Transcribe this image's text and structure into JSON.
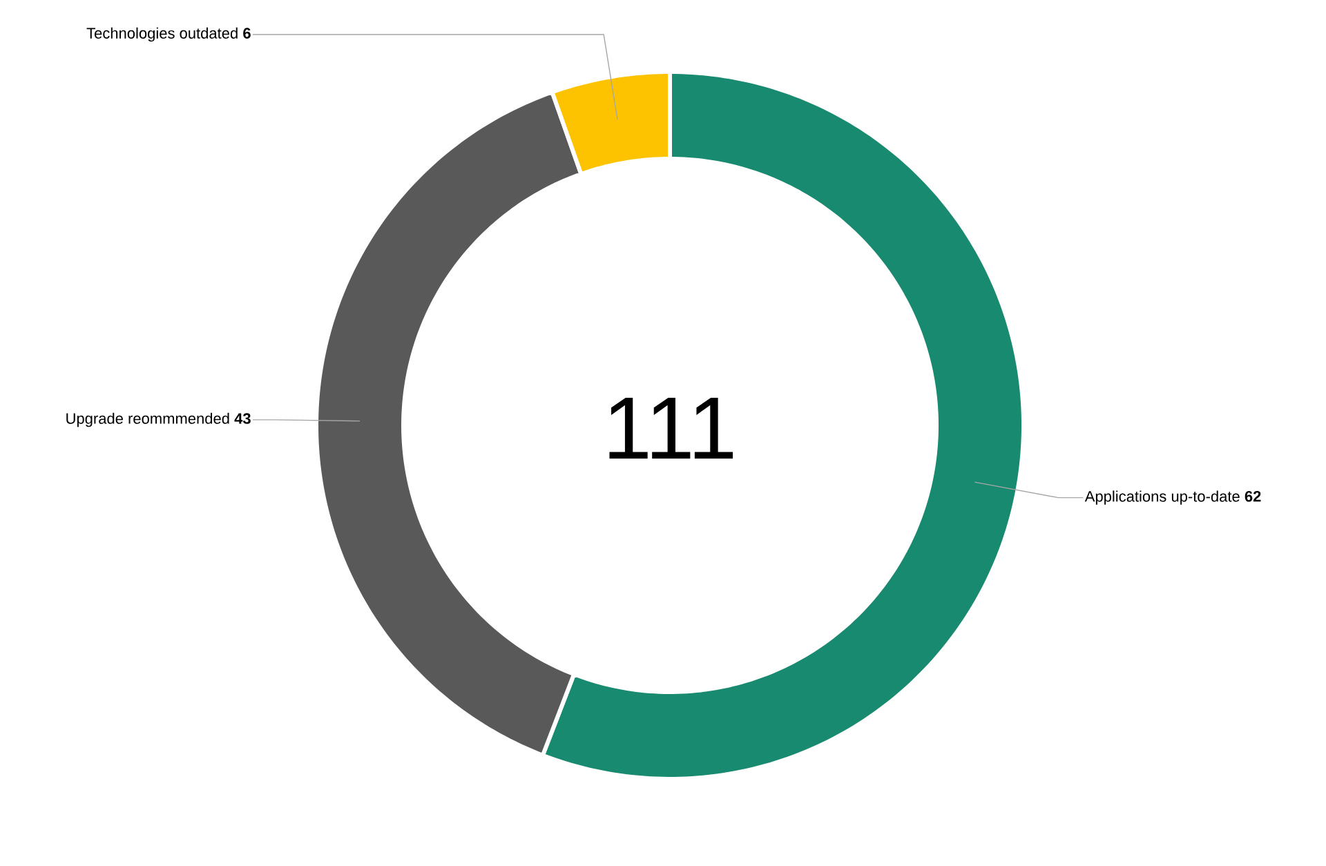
{
  "chart_data": {
    "type": "donut",
    "categories": [
      "Applications up-to-date",
      "Upgrade reommmended",
      "Technologies outdated"
    ],
    "values": [
      62,
      43,
      6
    ],
    "colors": [
      "#188a6f",
      "#595959",
      "#fdc300"
    ],
    "data_labels": true,
    "annotations": [
      "111"
    ]
  }
}
